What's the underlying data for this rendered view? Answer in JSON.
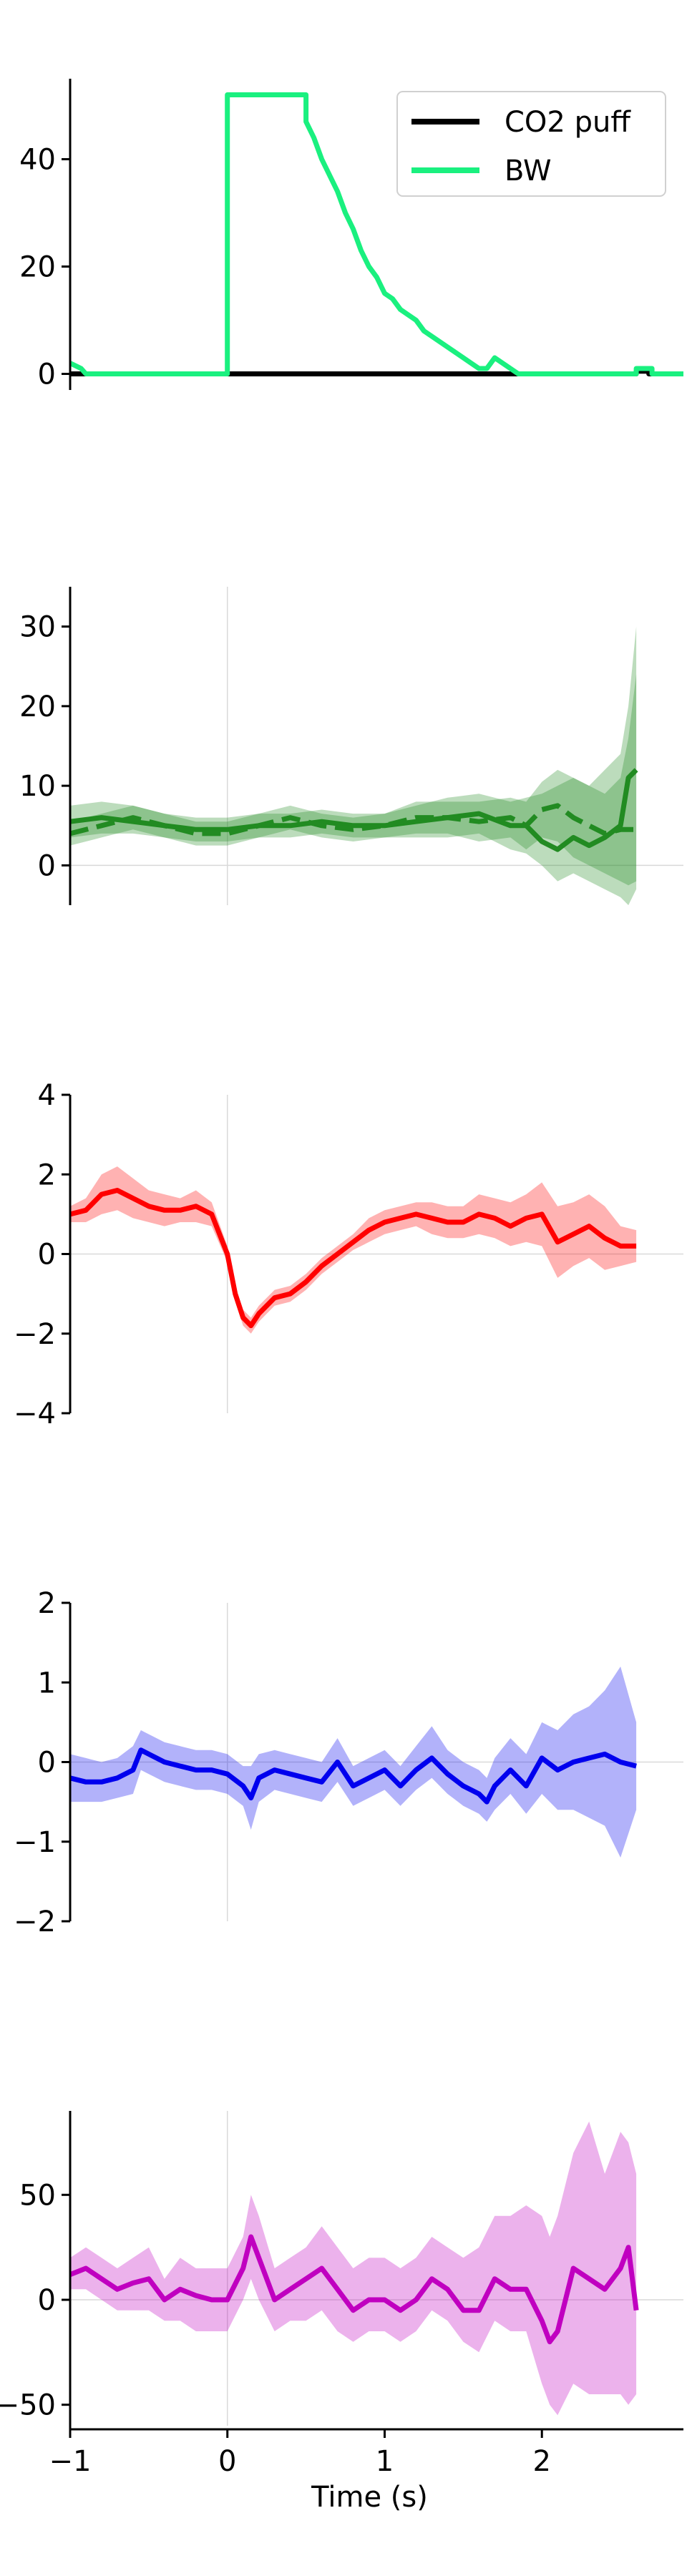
{
  "chart_data": [
    {
      "type": "line",
      "xlim": [
        -1.0,
        2.9
      ],
      "ylim": [
        -3,
        55
      ],
      "yticks": [
        0,
        20,
        40
      ],
      "grid": false,
      "legend": "top-right",
      "series": [
        {
          "name": "CO2 puff",
          "color": "#000000",
          "step": true,
          "x": [
            -1.0,
            0.0,
            2.6,
            2.6,
            2.68,
            2.68,
            2.9
          ],
          "y": [
            0,
            0,
            0,
            0.5,
            0.5,
            0,
            0
          ]
        },
        {
          "name": "BW",
          "color": "#1af07f",
          "step": true,
          "x": [
            -1.0,
            -0.93,
            -0.9,
            0.0,
            0.0,
            0.5,
            0.5,
            0.55,
            0.6,
            0.65,
            0.7,
            0.75,
            0.8,
            0.85,
            0.9,
            0.95,
            1.0,
            1.05,
            1.1,
            1.15,
            1.2,
            1.25,
            1.3,
            1.35,
            1.4,
            1.45,
            1.5,
            1.55,
            1.6,
            1.65,
            1.7,
            1.75,
            1.8,
            1.85,
            1.9,
            2.6,
            2.6,
            2.7,
            2.7,
            2.9
          ],
          "y": [
            2,
            1,
            0,
            0,
            52,
            52,
            47,
            44,
            40,
            37,
            34,
            30,
            27,
            23,
            20,
            18,
            15,
            14,
            12,
            11,
            10,
            8,
            7,
            6,
            5,
            4,
            3,
            2,
            1,
            1,
            3,
            2,
            1,
            0,
            0,
            0,
            1,
            1,
            0,
            0
          ]
        }
      ]
    },
    {
      "type": "line",
      "xlim": [
        -1.0,
        2.9
      ],
      "ylim": [
        -5,
        35
      ],
      "yticks": [
        0,
        10,
        20,
        30
      ],
      "grid": false,
      "legend": "none",
      "vline_x": 0,
      "hline_y": 0,
      "x": [
        -1.0,
        -0.8,
        -0.6,
        -0.4,
        -0.2,
        0.0,
        0.2,
        0.4,
        0.6,
        0.8,
        1.0,
        1.2,
        1.4,
        1.6,
        1.8,
        1.9,
        2.0,
        2.1,
        2.2,
        2.3,
        2.4,
        2.5,
        2.55,
        2.6
      ],
      "series": [
        {
          "color": "#228b22",
          "dash": false,
          "values": [
            5.5,
            6.0,
            5.5,
            5.0,
            4.5,
            4.5,
            5.0,
            5.0,
            5.5,
            5.0,
            5.0,
            5.5,
            6.0,
            6.5,
            5.0,
            5.0,
            3.0,
            2.0,
            3.5,
            2.5,
            3.5,
            5.0,
            11.0,
            12.0
          ],
          "lower": [
            3.5,
            4.0,
            4.0,
            3.5,
            3.0,
            3.0,
            3.5,
            3.5,
            4.0,
            3.5,
            3.5,
            3.5,
            3.5,
            4.0,
            2.0,
            1.5,
            0.0,
            -2.0,
            -1.0,
            -2.0,
            -3.0,
            -4.0,
            -5.0,
            -3.0
          ],
          "upper": [
            7.5,
            8.0,
            7.5,
            6.5,
            6.0,
            6.0,
            6.5,
            6.5,
            7.0,
            6.5,
            6.5,
            7.5,
            8.5,
            9.0,
            8.0,
            8.5,
            9.0,
            10.0,
            11.0,
            10.0,
            12.0,
            14.0,
            20.0,
            30.0
          ]
        },
        {
          "color": "#228b22",
          "dash": true,
          "values": [
            4.0,
            5.0,
            6.0,
            5.0,
            4.0,
            4.0,
            5.0,
            6.0,
            5.0,
            4.5,
            5.0,
            6.0,
            6.0,
            5.5,
            6.0,
            5.0,
            7.0,
            7.5,
            6.0,
            5.0,
            4.0,
            4.5,
            4.5,
            4.5
          ],
          "lower": [
            2.5,
            3.5,
            4.5,
            3.5,
            2.5,
            2.5,
            3.5,
            4.5,
            3.5,
            3.0,
            3.5,
            4.0,
            4.0,
            3.0,
            3.5,
            2.0,
            3.5,
            3.0,
            1.0,
            0.0,
            -1.0,
            -2.0,
            -2.5,
            -2.0
          ],
          "upper": [
            5.5,
            6.5,
            7.5,
            6.5,
            5.5,
            5.5,
            6.5,
            7.5,
            6.5,
            6.0,
            6.5,
            8.0,
            8.0,
            8.0,
            8.5,
            8.0,
            10.5,
            12.0,
            11.0,
            10.0,
            9.0,
            11.0,
            16.0,
            24.0
          ]
        }
      ]
    },
    {
      "type": "line",
      "xlim": [
        -1.0,
        2.9
      ],
      "ylim": [
        -4,
        4
      ],
      "yticks": [
        -4,
        -2,
        0,
        2,
        4
      ],
      "grid": false,
      "legend": "none",
      "vline_x": 0,
      "hline_y": 0,
      "x": [
        -1.0,
        -0.9,
        -0.8,
        -0.7,
        -0.6,
        -0.5,
        -0.4,
        -0.3,
        -0.2,
        -0.1,
        0.0,
        0.05,
        0.1,
        0.15,
        0.2,
        0.3,
        0.4,
        0.5,
        0.6,
        0.7,
        0.8,
        0.9,
        1.0,
        1.1,
        1.2,
        1.3,
        1.4,
        1.5,
        1.6,
        1.7,
        1.8,
        1.9,
        2.0,
        2.1,
        2.2,
        2.3,
        2.4,
        2.5,
        2.6
      ],
      "series": [
        {
          "color": "#ff0000",
          "values": [
            1.0,
            1.1,
            1.5,
            1.6,
            1.4,
            1.2,
            1.1,
            1.1,
            1.2,
            1.0,
            0.0,
            -1.0,
            -1.6,
            -1.8,
            -1.5,
            -1.1,
            -1.0,
            -0.7,
            -0.3,
            0.0,
            0.3,
            0.6,
            0.8,
            0.9,
            1.0,
            0.9,
            0.8,
            0.8,
            1.0,
            0.9,
            0.7,
            0.9,
            1.0,
            0.3,
            0.5,
            0.7,
            0.4,
            0.2,
            0.2
          ],
          "lower": [
            0.8,
            0.8,
            1.0,
            1.1,
            0.9,
            0.8,
            0.7,
            0.8,
            0.8,
            0.7,
            -0.2,
            -1.2,
            -1.8,
            -2.0,
            -1.7,
            -1.3,
            -1.2,
            -0.9,
            -0.5,
            -0.2,
            0.1,
            0.3,
            0.5,
            0.6,
            0.7,
            0.5,
            0.4,
            0.4,
            0.5,
            0.4,
            0.2,
            0.3,
            0.2,
            -0.6,
            -0.3,
            -0.1,
            -0.4,
            -0.3,
            -0.2
          ],
          "upper": [
            1.2,
            1.4,
            2.0,
            2.2,
            1.9,
            1.6,
            1.5,
            1.4,
            1.6,
            1.3,
            0.2,
            -0.8,
            -1.4,
            -1.6,
            -1.3,
            -0.9,
            -0.8,
            -0.5,
            -0.1,
            0.2,
            0.5,
            0.9,
            1.1,
            1.2,
            1.3,
            1.3,
            1.2,
            1.2,
            1.5,
            1.4,
            1.3,
            1.5,
            1.8,
            1.2,
            1.3,
            1.5,
            1.2,
            0.7,
            0.6
          ]
        }
      ]
    },
    {
      "type": "line",
      "xlim": [
        -1.0,
        2.9
      ],
      "ylim": [
        -2,
        2
      ],
      "yticks": [
        -2,
        -1,
        0,
        1,
        2
      ],
      "grid": false,
      "legend": "none",
      "vline_x": 0,
      "hline_y": 0,
      "x": [
        -1.0,
        -0.9,
        -0.8,
        -0.7,
        -0.6,
        -0.55,
        -0.5,
        -0.4,
        -0.3,
        -0.2,
        -0.1,
        0.0,
        0.1,
        0.15,
        0.2,
        0.3,
        0.4,
        0.5,
        0.6,
        0.7,
        0.8,
        0.9,
        1.0,
        1.1,
        1.2,
        1.3,
        1.4,
        1.5,
        1.6,
        1.65,
        1.7,
        1.8,
        1.9,
        2.0,
        2.1,
        2.2,
        2.3,
        2.4,
        2.5,
        2.6
      ],
      "series": [
        {
          "color": "#0000ee",
          "values": [
            -0.2,
            -0.25,
            -0.25,
            -0.2,
            -0.1,
            0.15,
            0.1,
            0.0,
            -0.05,
            -0.1,
            -0.1,
            -0.15,
            -0.3,
            -0.45,
            -0.2,
            -0.1,
            -0.15,
            -0.2,
            -0.25,
            0.0,
            -0.3,
            -0.2,
            -0.1,
            -0.3,
            -0.1,
            0.05,
            -0.15,
            -0.3,
            -0.4,
            -0.5,
            -0.3,
            -0.1,
            -0.3,
            0.05,
            -0.1,
            0.0,
            0.05,
            0.1,
            0.0,
            -0.05
          ],
          "lower": [
            -0.5,
            -0.5,
            -0.5,
            -0.45,
            -0.4,
            -0.1,
            -0.15,
            -0.25,
            -0.3,
            -0.35,
            -0.35,
            -0.4,
            -0.55,
            -0.85,
            -0.5,
            -0.35,
            -0.4,
            -0.45,
            -0.5,
            -0.25,
            -0.55,
            -0.45,
            -0.35,
            -0.55,
            -0.35,
            -0.2,
            -0.4,
            -0.55,
            -0.65,
            -0.75,
            -0.6,
            -0.4,
            -0.65,
            -0.4,
            -0.6,
            -0.6,
            -0.7,
            -0.8,
            -1.2,
            -0.6
          ],
          "upper": [
            0.1,
            0.05,
            0.0,
            0.05,
            0.2,
            0.4,
            0.35,
            0.25,
            0.2,
            0.15,
            0.15,
            0.1,
            -0.05,
            -0.05,
            0.1,
            0.15,
            0.1,
            0.05,
            0.0,
            0.3,
            -0.05,
            0.05,
            0.15,
            -0.05,
            0.2,
            0.45,
            0.15,
            0.0,
            -0.1,
            -0.2,
            0.05,
            0.3,
            0.1,
            0.5,
            0.4,
            0.6,
            0.7,
            0.9,
            1.2,
            0.5
          ]
        }
      ]
    },
    {
      "type": "line",
      "xlim": [
        -1.0,
        2.9
      ],
      "ylim": [
        -60,
        90
      ],
      "yticks": [
        -50,
        0,
        50
      ],
      "xticks": [
        -1,
        0,
        1,
        2
      ],
      "xlabel": "Time (s)",
      "grid": false,
      "legend": "none",
      "vline_x": 0,
      "hline_y": 0,
      "x": [
        -1.0,
        -0.9,
        -0.8,
        -0.7,
        -0.6,
        -0.5,
        -0.4,
        -0.3,
        -0.2,
        -0.1,
        0.0,
        0.1,
        0.15,
        0.2,
        0.3,
        0.4,
        0.5,
        0.6,
        0.7,
        0.8,
        0.9,
        1.0,
        1.1,
        1.2,
        1.3,
        1.4,
        1.5,
        1.6,
        1.7,
        1.8,
        1.9,
        2.0,
        2.05,
        2.1,
        2.2,
        2.3,
        2.4,
        2.5,
        2.55,
        2.6
      ],
      "series": [
        {
          "color": "#c000c0",
          "values": [
            12,
            15,
            10,
            5,
            8,
            10,
            0,
            5,
            2,
            0,
            0,
            15,
            30,
            20,
            0,
            5,
            10,
            15,
            5,
            -5,
            0,
            0,
            -5,
            0,
            10,
            5,
            -5,
            -5,
            10,
            5,
            5,
            -10,
            -20,
            -15,
            15,
            10,
            5,
            15,
            25,
            -5
          ],
          "lower": [
            5,
            5,
            0,
            -5,
            -5,
            -5,
            -10,
            -10,
            -15,
            -15,
            -15,
            0,
            10,
            0,
            -15,
            -10,
            -10,
            -5,
            -15,
            -20,
            -15,
            -15,
            -20,
            -15,
            -5,
            -10,
            -20,
            -25,
            -10,
            -15,
            -15,
            -40,
            -50,
            -55,
            -40,
            -45,
            -45,
            -45,
            -50,
            -45
          ],
          "upper": [
            20,
            25,
            20,
            15,
            20,
            25,
            10,
            20,
            15,
            15,
            15,
            30,
            50,
            40,
            15,
            20,
            25,
            35,
            25,
            15,
            20,
            20,
            15,
            20,
            30,
            25,
            20,
            25,
            40,
            40,
            45,
            40,
            30,
            40,
            70,
            85,
            60,
            80,
            75,
            60
          ]
        }
      ]
    }
  ]
}
